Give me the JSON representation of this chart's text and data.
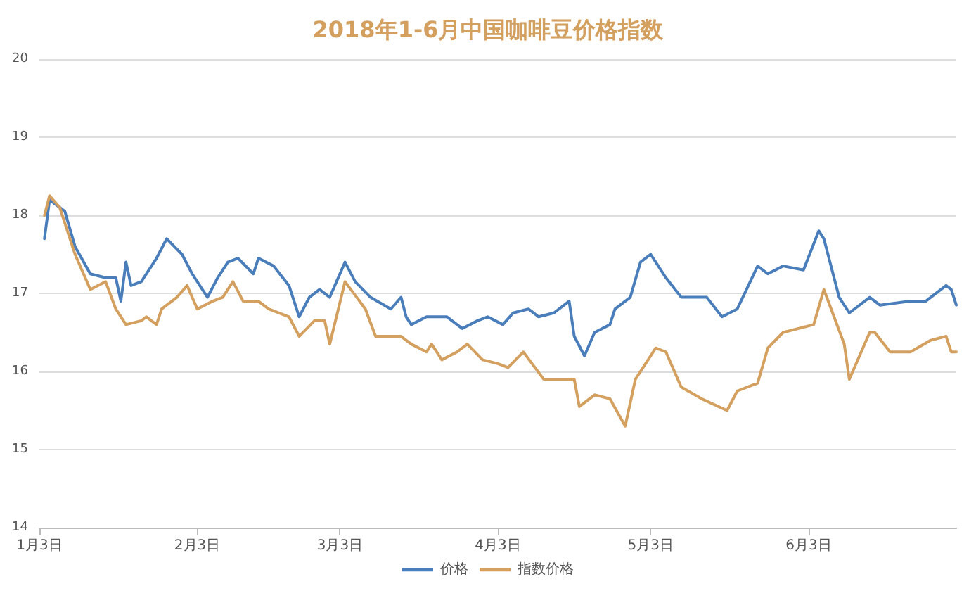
{
  "chart_data": {
    "type": "line",
    "title": "2018年1-6月中国咖啡豆价格指数",
    "xlim": [
      "2018-01-03",
      "2018-07-02"
    ],
    "xticks": [
      {
        "value": "2018-01-03",
        "label": "1月3日"
      },
      {
        "value": "2018-02-03",
        "label": "2月3日"
      },
      {
        "value": "2018-03-03",
        "label": "3月3日"
      },
      {
        "value": "2018-04-03",
        "label": "4月3日"
      },
      {
        "value": "2018-05-03",
        "label": "5月3日"
      },
      {
        "value": "2018-06-03",
        "label": "6月3日"
      }
    ],
    "ylim": [
      14,
      20
    ],
    "yticks": [
      14,
      15,
      16,
      17,
      18,
      19,
      20
    ],
    "grid": "y",
    "legend": "bottom",
    "marker": "none",
    "line_style": "solid",
    "series": [
      {
        "name": "价格",
        "color": "#4a7ebb",
        "x": [
          "2018-01-04",
          "2018-01-05",
          "2018-01-08",
          "2018-01-10",
          "2018-01-13",
          "2018-01-16",
          "2018-01-18",
          "2018-01-19",
          "2018-01-20",
          "2018-01-21",
          "2018-01-23",
          "2018-01-26",
          "2018-01-28",
          "2018-01-31",
          "2018-02-02",
          "2018-02-05",
          "2018-02-07",
          "2018-02-09",
          "2018-02-11",
          "2018-02-14",
          "2018-02-15",
          "2018-02-18",
          "2018-02-21",
          "2018-02-23",
          "2018-02-25",
          "2018-02-27",
          "2018-03-01",
          "2018-03-04",
          "2018-03-06",
          "2018-03-09",
          "2018-03-13",
          "2018-03-15",
          "2018-03-16",
          "2018-03-17",
          "2018-03-20",
          "2018-03-24",
          "2018-03-27",
          "2018-03-30",
          "2018-04-01",
          "2018-04-04",
          "2018-04-06",
          "2018-04-09",
          "2018-04-11",
          "2018-04-14",
          "2018-04-17",
          "2018-04-18",
          "2018-04-20",
          "2018-04-22",
          "2018-04-25",
          "2018-04-26",
          "2018-04-28",
          "2018-04-29",
          "2018-05-01",
          "2018-05-03",
          "2018-05-06",
          "2018-05-09",
          "2018-05-14",
          "2018-05-17",
          "2018-05-20",
          "2018-05-24",
          "2018-05-26",
          "2018-05-29",
          "2018-06-02",
          "2018-06-05",
          "2018-06-06",
          "2018-06-09",
          "2018-06-11",
          "2018-06-15",
          "2018-06-17",
          "2018-06-23",
          "2018-06-26",
          "2018-06-30",
          "2018-07-01",
          "2018-07-02"
        ],
        "values": [
          17.7,
          18.2,
          18.05,
          17.6,
          17.25,
          17.2,
          17.2,
          16.9,
          17.4,
          17.1,
          17.15,
          17.45,
          17.7,
          17.5,
          17.25,
          16.95,
          17.2,
          17.4,
          17.45,
          17.25,
          17.45,
          17.35,
          17.1,
          16.7,
          16.95,
          17.05,
          16.95,
          17.4,
          17.15,
          16.95,
          16.8,
          16.95,
          16.7,
          16.6,
          16.7,
          16.7,
          16.55,
          16.65,
          16.7,
          16.6,
          16.75,
          16.8,
          16.7,
          16.75,
          16.9,
          16.45,
          16.2,
          16.5,
          16.6,
          16.8,
          16.9,
          16.95,
          17.4,
          17.5,
          17.2,
          16.95,
          16.95,
          16.7,
          16.8,
          17.35,
          17.25,
          17.35,
          17.3,
          17.8,
          17.7,
          16.95,
          16.75,
          16.95,
          16.85,
          16.9,
          16.9,
          17.1,
          17.05,
          16.85
        ]
      },
      {
        "name": "指数价格",
        "color": "#d4a060",
        "x": [
          "2018-01-04",
          "2018-01-05",
          "2018-01-07",
          "2018-01-10",
          "2018-01-13",
          "2018-01-16",
          "2018-01-18",
          "2018-01-20",
          "2018-01-23",
          "2018-01-24",
          "2018-01-26",
          "2018-01-27",
          "2018-01-30",
          "2018-02-01",
          "2018-02-03",
          "2018-02-06",
          "2018-02-08",
          "2018-02-10",
          "2018-02-12",
          "2018-02-15",
          "2018-02-17",
          "2018-02-21",
          "2018-02-23",
          "2018-02-26",
          "2018-02-28",
          "2018-03-01",
          "2018-03-04",
          "2018-03-08",
          "2018-03-10",
          "2018-03-15",
          "2018-03-17",
          "2018-03-20",
          "2018-03-21",
          "2018-03-23",
          "2018-03-26",
          "2018-03-28",
          "2018-03-31",
          "2018-04-03",
          "2018-04-05",
          "2018-04-08",
          "2018-04-12",
          "2018-04-15",
          "2018-04-18",
          "2018-04-19",
          "2018-04-22",
          "2018-04-25",
          "2018-04-28",
          "2018-04-30",
          "2018-05-04",
          "2018-05-06",
          "2018-05-09",
          "2018-05-13",
          "2018-05-18",
          "2018-05-20",
          "2018-05-24",
          "2018-05-26",
          "2018-05-29",
          "2018-06-04",
          "2018-06-06",
          "2018-06-08",
          "2018-06-10",
          "2018-06-11",
          "2018-06-15",
          "2018-06-16",
          "2018-06-19",
          "2018-06-23",
          "2018-06-27",
          "2018-06-30",
          "2018-07-01",
          "2018-07-02"
        ],
        "values": [
          18.0,
          18.25,
          18.1,
          17.5,
          17.05,
          17.15,
          16.8,
          16.6,
          16.65,
          16.7,
          16.6,
          16.8,
          16.95,
          17.1,
          16.8,
          16.9,
          16.95,
          17.15,
          16.9,
          16.9,
          16.8,
          16.7,
          16.45,
          16.65,
          16.65,
          16.35,
          17.15,
          16.8,
          16.45,
          16.45,
          16.35,
          16.25,
          16.35,
          16.15,
          16.25,
          16.35,
          16.15,
          16.1,
          16.05,
          16.25,
          15.9,
          15.9,
          15.9,
          15.55,
          15.7,
          15.65,
          15.3,
          15.9,
          16.3,
          16.25,
          15.8,
          15.65,
          15.5,
          15.75,
          15.85,
          16.3,
          16.5,
          16.6,
          17.05,
          16.7,
          16.35,
          15.9,
          16.5,
          16.5,
          16.25,
          16.25,
          16.4,
          16.45,
          16.25,
          16.25
        ]
      }
    ]
  }
}
